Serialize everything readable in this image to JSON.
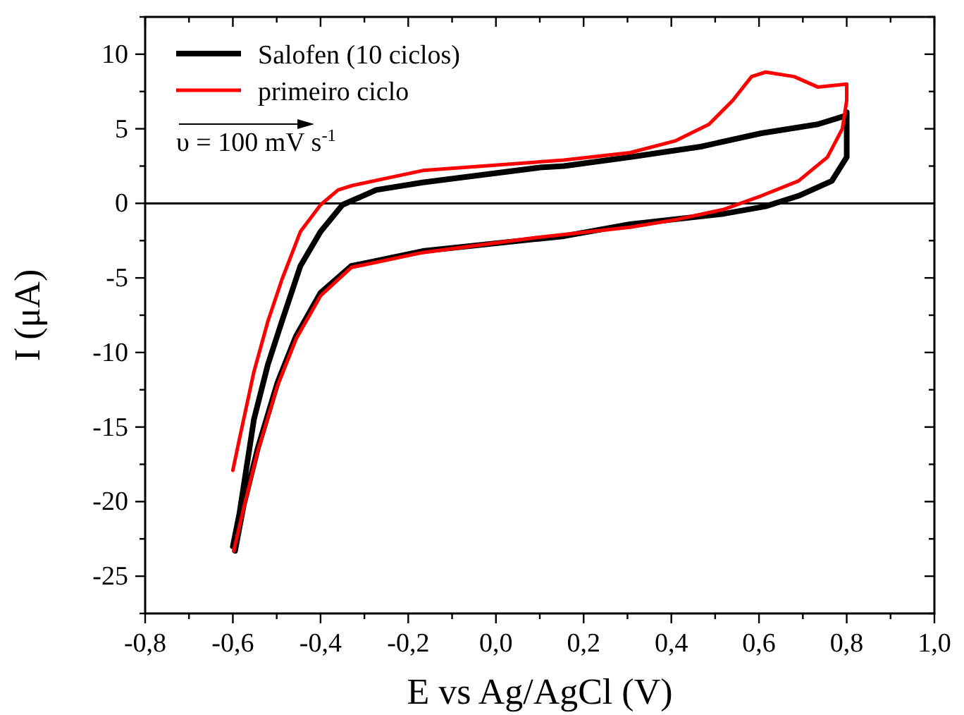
{
  "chart_data": {
    "type": "line",
    "xlabel": "E vs Ag/AgCl (V)",
    "ylabel": "I (μA)",
    "xlim": [
      -0.8,
      1.0
    ],
    "ylim": [
      -27.5,
      12.5
    ],
    "xticks": [
      {
        "value": -0.8,
        "label": "-0,8"
      },
      {
        "value": -0.7,
        "label": null
      },
      {
        "value": -0.6,
        "label": "-0,6"
      },
      {
        "value": -0.5,
        "label": null
      },
      {
        "value": -0.4,
        "label": "-0,4"
      },
      {
        "value": -0.3,
        "label": null
      },
      {
        "value": -0.2,
        "label": "-0,2"
      },
      {
        "value": -0.1,
        "label": null
      },
      {
        "value": 0,
        "label": "0,0"
      },
      {
        "value": 0.1,
        "label": null
      },
      {
        "value": 0.2,
        "label": "0,2"
      },
      {
        "value": 0.3,
        "label": null
      },
      {
        "value": 0.4,
        "label": "0,4"
      },
      {
        "value": 0.5,
        "label": null
      },
      {
        "value": 0.6,
        "label": "0,6"
      },
      {
        "value": 0.7,
        "label": null
      },
      {
        "value": 0.8,
        "label": "0,8"
      },
      {
        "value": 0.9,
        "label": null
      },
      {
        "value": 1.0,
        "label": "1,0"
      }
    ],
    "yticks": [
      {
        "value": -27.5,
        "label": null
      },
      -25,
      {
        "value": -22.5,
        "label": null
      },
      -20,
      {
        "value": -17.5,
        "label": null
      },
      -15,
      {
        "value": -12.5,
        "label": null
      },
      -10,
      {
        "value": -7.5,
        "label": null
      },
      -5,
      {
        "value": -2.5,
        "label": null
      },
      0,
      {
        "value": 2.5,
        "label": null
      },
      5,
      {
        "value": 7.5,
        "label": null
      },
      10,
      {
        "value": 12.5,
        "label": null
      }
    ],
    "series": [
      {
        "name": "Salofen (10 ciclos)",
        "color": "#000000",
        "x": [
          -0.6,
          -0.585,
          -0.552,
          -0.52,
          -0.488,
          -0.446,
          -0.4,
          -0.35,
          -0.273,
          -0.167,
          0.1,
          0.155,
          0.306,
          0.467,
          0.605,
          0.734,
          0.8,
          0.8,
          0.8,
          0.766,
          0.69,
          0.615,
          0.52,
          0.306,
          0.155,
          0.09,
          -0.167,
          -0.33,
          -0.4,
          -0.456,
          -0.498,
          -0.543,
          -0.575,
          -0.595
        ],
        "values": [
          -23.0,
          -20.8,
          -14.5,
          -10.8,
          -7.9,
          -4.2,
          -1.9,
          -0.1,
          0.9,
          1.4,
          2.4,
          2.5,
          3.1,
          3.8,
          4.7,
          5.3,
          5.9,
          6.1,
          3.1,
          1.5,
          0.5,
          -0.2,
          -0.7,
          -1.4,
          -2.2,
          -2.4,
          -3.2,
          -4.2,
          -6.0,
          -8.9,
          -12.0,
          -16.4,
          -20.2,
          -23.3
        ]
      },
      {
        "name": "primeiro ciclo",
        "color": "#ff0000",
        "x": [
          -0.6,
          -0.585,
          -0.552,
          -0.52,
          -0.488,
          -0.446,
          -0.4,
          -0.36,
          -0.327,
          -0.167,
          0.155,
          0.306,
          0.41,
          0.486,
          0.54,
          0.583,
          0.615,
          0.68,
          0.734,
          0.8,
          0.8,
          0.79,
          0.756,
          0.69,
          0.605,
          0.52,
          0.41,
          0.306,
          0.09,
          -0.167,
          -0.33,
          -0.4,
          -0.456,
          -0.498,
          -0.543,
          -0.575,
          -0.598
        ],
        "values": [
          -17.9,
          -15.8,
          -11.3,
          -7.9,
          -5.1,
          -1.9,
          -0.1,
          0.9,
          1.2,
          2.2,
          2.9,
          3.4,
          4.2,
          5.3,
          6.9,
          8.5,
          8.8,
          8.5,
          7.8,
          8.0,
          6.9,
          5.0,
          3.1,
          1.5,
          0.5,
          -0.4,
          -1.1,
          -1.6,
          -2.3,
          -3.3,
          -4.3,
          -6.2,
          -9.1,
          -12.2,
          -16.6,
          -20.4,
          -23.3
        ]
      }
    ],
    "ref_lines": [
      {
        "axis": "y",
        "value": 0,
        "color": "#000000"
      }
    ],
    "legend": "top left",
    "annotations": [
      "υ = 100 mV s$^{-1}$"
    ]
  }
}
